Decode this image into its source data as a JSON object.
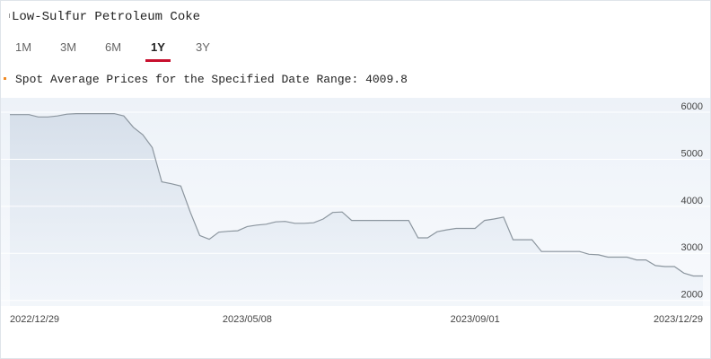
{
  "header": {
    "title": "Low-Sulfur Petroleum Coke",
    "tabs": [
      "1M",
      "3M",
      "6M",
      "1Y",
      "3Y"
    ],
    "active_tab": 3
  },
  "summary": {
    "label": "Spot Average Prices for the Specified Date Range:",
    "value": 4009.8
  },
  "chart_data": {
    "type": "line",
    "color": "#8c969f",
    "fill": "#dde6f1",
    "categories": [
      "2022/12/29",
      null,
      null,
      null,
      null,
      null,
      null,
      null,
      null,
      null,
      null,
      null,
      null,
      null,
      null,
      null,
      null,
      null,
      null,
      null,
      null,
      null,
      null,
      null,
      null,
      "2023/05/08",
      null,
      null,
      null,
      null,
      null,
      null,
      null,
      null,
      null,
      null,
      null,
      null,
      null,
      null,
      null,
      null,
      null,
      null,
      null,
      null,
      null,
      null,
      null,
      "2023/09/01",
      null,
      null,
      null,
      null,
      null,
      null,
      null,
      null,
      null,
      null,
      null,
      null,
      null,
      null,
      null,
      null,
      null,
      null,
      null,
      null,
      null,
      null,
      null,
      "2023/12/29"
    ],
    "values": [
      5950,
      5950,
      5950,
      5900,
      5900,
      5920,
      5960,
      5970,
      5970,
      5970,
      5970,
      5970,
      5920,
      5680,
      5520,
      5250,
      4520,
      4480,
      4430,
      3880,
      3380,
      3300,
      3450,
      3470,
      3480,
      3570,
      3600,
      3620,
      3670,
      3680,
      3640,
      3640,
      3650,
      3730,
      3870,
      3880,
      3700,
      3700,
      3700,
      3700,
      3700,
      3700,
      3700,
      3330,
      3330,
      3460,
      3500,
      3530,
      3530,
      3530,
      3700,
      3730,
      3770,
      3290,
      3290,
      3290,
      3040,
      3040,
      3040,
      3040,
      3040,
      2980,
      2970,
      2920,
      2920,
      2920,
      2860,
      2860,
      2740,
      2720,
      2720,
      2580,
      2520,
      2520
    ],
    "ylim": [
      1880,
      6230
    ],
    "yticks": [
      2000,
      3000,
      4000,
      5000,
      6000
    ],
    "grid": true
  }
}
